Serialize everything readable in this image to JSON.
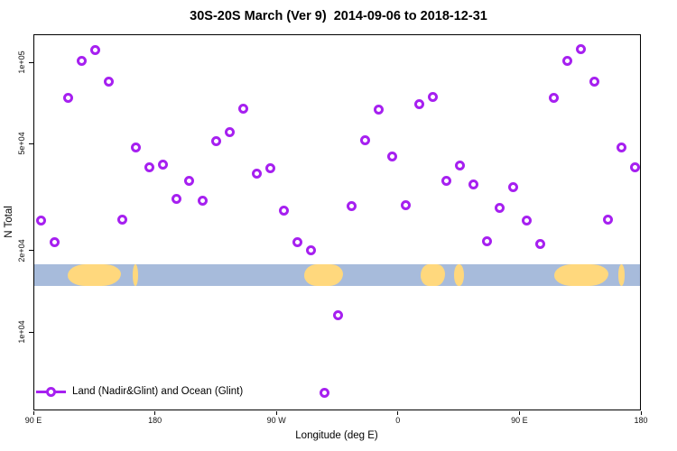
{
  "title": "30S-20S March (Ver 9)  2014-09-06 to 2018-12-31",
  "legend": {
    "label": "Land (Nadir&Glint) and Ocean (Glint)"
  },
  "colors": {
    "series": "#a620f0",
    "ocean": "#a7bbdb",
    "land": "#ffd87d",
    "axis": "#000000"
  },
  "chart_data": {
    "type": "scatter",
    "title": "30S-20S March (Ver 9)  2014-09-06 to 2018-12-31",
    "xlabel": "Longitude (deg E)",
    "ylabel": "N Total",
    "grid": false,
    "legend_position": "bottom-left-inside",
    "x_axis": {
      "note": "longitude increases eastward and wraps past the dateline; axis spans 450 degrees",
      "range_deg": [
        90,
        540
      ],
      "ticks": [
        {
          "lon": 90,
          "label": "90 E"
        },
        {
          "lon": 180,
          "label": "180"
        },
        {
          "lon": 270,
          "label": "90 W"
        },
        {
          "lon": 360,
          "label": "0"
        },
        {
          "lon": 450,
          "label": "90 E"
        },
        {
          "lon": 540,
          "label": "180"
        }
      ]
    },
    "y_axis": {
      "scale": "log10",
      "range": [
        5100,
        127000
      ],
      "ticks": [
        {
          "value": 10000,
          "label": "1e+04"
        },
        {
          "value": 20000,
          "label": "2e+04"
        },
        {
          "value": 50000,
          "label": "5e+04"
        },
        {
          "value": 100000,
          "label": "1e+05"
        }
      ]
    },
    "series": [
      {
        "name": "Land (Nadir&Glint) and Ocean (Glint)",
        "marker": "open-circle",
        "color": "#a620f0",
        "points_format": "[longitude_axis_deg, n_total]",
        "points": [
          [
            95,
            26000
          ],
          [
            105,
            21600
          ],
          [
            115,
            74100
          ],
          [
            125,
            102000
          ],
          [
            135,
            112000
          ],
          [
            145,
            85100
          ],
          [
            155,
            26200
          ],
          [
            165,
            48500
          ],
          [
            175,
            41200
          ],
          [
            185,
            41900
          ],
          [
            195,
            31300
          ],
          [
            205,
            36500
          ],
          [
            215,
            31000
          ],
          [
            225,
            51200
          ],
          [
            235,
            55300
          ],
          [
            245,
            68000
          ],
          [
            255,
            38800
          ],
          [
            265,
            40900
          ],
          [
            275,
            28500
          ],
          [
            285,
            21600
          ],
          [
            295,
            20200
          ],
          [
            305,
            6000
          ],
          [
            315,
            11600
          ],
          [
            325,
            29400
          ],
          [
            335,
            51600
          ],
          [
            345,
            67500
          ],
          [
            355,
            45200
          ],
          [
            365,
            29800
          ],
          [
            375,
            70200
          ],
          [
            385,
            75200
          ],
          [
            395,
            36500
          ],
          [
            405,
            41600
          ],
          [
            415,
            35400
          ],
          [
            425,
            21800
          ],
          [
            435,
            29000
          ],
          [
            445,
            34600
          ],
          [
            455,
            26000
          ],
          [
            465,
            21400
          ],
          [
            475,
            74100
          ],
          [
            485,
            102000
          ],
          [
            495,
            113000
          ],
          [
            505,
            85100
          ],
          [
            515,
            26200
          ],
          [
            525,
            48500
          ],
          [
            535,
            41200
          ]
        ]
      }
    ],
    "map_band": {
      "description": "world-map strip of the 30S-20S latitude zone drawn across the plot",
      "ocean_color": "#a7bbdb",
      "land_color": "#ffd87d",
      "top_value": 18000,
      "bottom_value": 14900,
      "land_segments_lon": [
        [
          115,
          154.5
        ],
        [
          163,
          167
        ],
        [
          290,
          318.5
        ],
        [
          376,
          394.5
        ],
        [
          401,
          408
        ],
        [
          475,
          515
        ],
        [
          522.5,
          527.5
        ]
      ]
    }
  }
}
